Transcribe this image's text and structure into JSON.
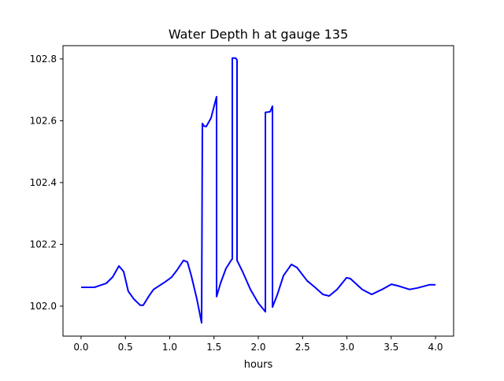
{
  "chart_data": {
    "type": "line",
    "title": "Water Depth h at gauge 135",
    "xlabel": "hours",
    "ylabel": "",
    "xlim": [
      -0.204,
      4.204
    ],
    "ylim": [
      101.903,
      102.843
    ],
    "grid": false,
    "xticks": [
      0.0,
      0.5,
      1.0,
      1.5,
      2.0,
      2.5,
      3.0,
      3.5,
      4.0
    ],
    "xtick_labels": [
      "0.0",
      "0.5",
      "1.0",
      "1.5",
      "2.0",
      "2.5",
      "3.0",
      "3.5",
      "4.0"
    ],
    "yticks": [
      102.0,
      102.2,
      102.4,
      102.6,
      102.8
    ],
    "ytick_labels": [
      "102.0",
      "102.2",
      "102.4",
      "102.6",
      "102.8"
    ],
    "series": [
      {
        "name": "h",
        "color": "#0000ff",
        "points": [
          [
            0,
            102.061
          ],
          [
            0.151,
            102.061
          ],
          [
            0.284,
            102.074
          ],
          [
            0.356,
            102.094
          ],
          [
            0.427,
            102.13
          ],
          [
            0.48,
            102.112
          ],
          [
            0.533,
            102.048
          ],
          [
            0.596,
            102.023
          ],
          [
            0.667,
            102.003
          ],
          [
            0.702,
            102.003
          ],
          [
            0.773,
            102.036
          ],
          [
            0.818,
            102.054
          ],
          [
            0.951,
            102.079
          ],
          [
            1.022,
            102.094
          ],
          [
            1.084,
            102.117
          ],
          [
            1.156,
            102.148
          ],
          [
            1.2,
            102.143
          ],
          [
            1.244,
            102.099
          ],
          [
            1.307,
            102.023
          ],
          [
            1.36,
            101.946
          ],
          [
            1.369,
            102.591
          ],
          [
            1.387,
            102.583
          ],
          [
            1.413,
            102.581
          ],
          [
            1.467,
            102.609
          ],
          [
            1.529,
            102.678
          ],
          [
            1.529,
            102.031
          ],
          [
            1.573,
            102.074
          ],
          [
            1.636,
            102.122
          ],
          [
            1.698,
            102.15
          ],
          [
            1.707,
            102.153
          ],
          [
            1.707,
            102.803
          ],
          [
            1.742,
            102.803
          ],
          [
            1.76,
            102.797
          ],
          [
            1.76,
            102.148
          ],
          [
            1.822,
            102.112
          ],
          [
            1.911,
            102.054
          ],
          [
            2.0,
            102.01
          ],
          [
            2.08,
            101.982
          ],
          [
            2.08,
            102.627
          ],
          [
            2.133,
            102.629
          ],
          [
            2.16,
            102.647
          ],
          [
            2.16,
            101.997
          ],
          [
            2.213,
            102.036
          ],
          [
            2.284,
            102.099
          ],
          [
            2.373,
            102.135
          ],
          [
            2.436,
            102.125
          ],
          [
            2.551,
            102.082
          ],
          [
            2.64,
            102.061
          ],
          [
            2.729,
            102.038
          ],
          [
            2.8,
            102.033
          ],
          [
            2.889,
            102.054
          ],
          [
            2.996,
            102.092
          ],
          [
            3.04,
            102.089
          ],
          [
            3.173,
            102.054
          ],
          [
            3.28,
            102.038
          ],
          [
            3.396,
            102.054
          ],
          [
            3.502,
            102.071
          ],
          [
            3.573,
            102.066
          ],
          [
            3.707,
            102.054
          ],
          [
            3.796,
            102.059
          ],
          [
            3.929,
            102.069
          ],
          [
            4.0,
            102.069
          ]
        ]
      }
    ]
  }
}
